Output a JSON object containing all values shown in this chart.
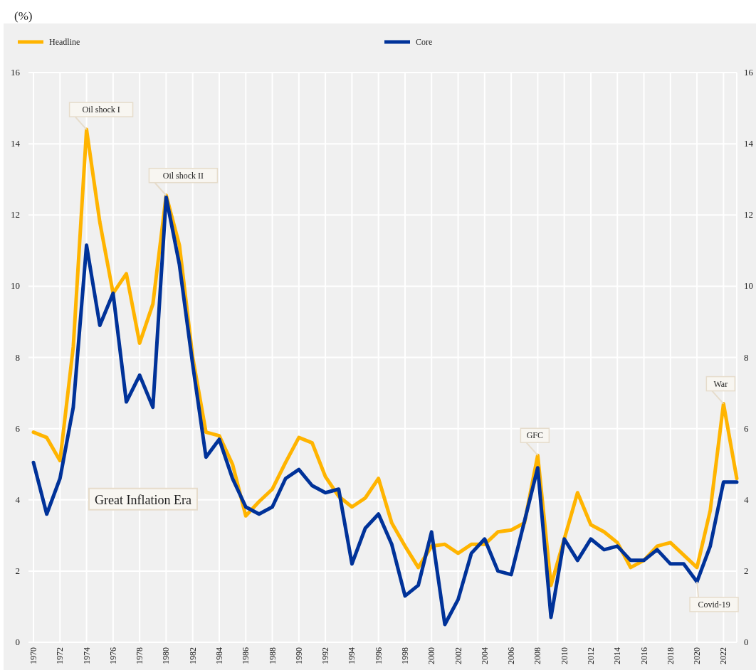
{
  "chart_data": {
    "type": "line",
    "ylabel": "(%)",
    "x": [
      1970,
      1971,
      1972,
      1973,
      1974,
      1975,
      1976,
      1977,
      1978,
      1979,
      1980,
      1981,
      1982,
      1983,
      1984,
      1985,
      1986,
      1987,
      1988,
      1989,
      1990,
      1991,
      1992,
      1993,
      1994,
      1995,
      1996,
      1997,
      1998,
      1999,
      2000,
      2001,
      2002,
      2003,
      2004,
      2005,
      2006,
      2007,
      2008,
      2009,
      2010,
      2011,
      2012,
      2013,
      2014,
      2015,
      2016,
      2017,
      2018,
      2019,
      2020,
      2021,
      2022,
      2023
    ],
    "series": [
      {
        "name": "Headline",
        "color": "#ffb400",
        "values": [
          5.9,
          5.75,
          5.1,
          8.3,
          14.4,
          11.8,
          9.8,
          10.35,
          8.4,
          9.5,
          12.55,
          11.15,
          8.0,
          5.9,
          5.8,
          5.0,
          3.55,
          3.95,
          4.3,
          5.05,
          5.75,
          5.6,
          4.65,
          4.1,
          3.8,
          4.05,
          4.6,
          3.35,
          2.7,
          2.1,
          2.7,
          2.75,
          2.5,
          2.75,
          2.75,
          3.1,
          3.15,
          3.35,
          5.25,
          1.6,
          2.9,
          4.2,
          3.3,
          3.1,
          2.8,
          2.1,
          2.3,
          2.7,
          2.8,
          2.45,
          2.1,
          3.7,
          6.7,
          4.6
        ]
      },
      {
        "name": "Core",
        "color": "#003299",
        "values": [
          5.05,
          3.6,
          4.6,
          6.6,
          11.15,
          8.9,
          9.8,
          6.75,
          7.5,
          6.6,
          12.5,
          10.6,
          7.8,
          5.2,
          5.7,
          4.6,
          3.8,
          3.6,
          3.8,
          4.6,
          4.85,
          4.4,
          4.2,
          4.3,
          2.2,
          3.2,
          3.6,
          2.75,
          1.3,
          1.6,
          3.1,
          0.5,
          1.2,
          2.5,
          2.9,
          2.0,
          1.9,
          3.4,
          4.9,
          0.7,
          2.9,
          2.3,
          2.9,
          2.6,
          2.7,
          2.3,
          2.3,
          2.6,
          2.2,
          2.2,
          1.7,
          2.7,
          4.5,
          4.5
        ]
      }
    ],
    "xlim": [
      1970,
      2023
    ],
    "xticks": [
      1970,
      1972,
      1974,
      1976,
      1978,
      1980,
      1982,
      1984,
      1986,
      1988,
      1990,
      1992,
      1994,
      1996,
      1998,
      2000,
      2002,
      2004,
      2006,
      2008,
      2010,
      2012,
      2014,
      2016,
      2018,
      2020,
      2022
    ],
    "ylim": [
      0,
      16
    ],
    "yticks": [
      0,
      2,
      4,
      6,
      8,
      10,
      12,
      14,
      16
    ],
    "y2lim": [
      0,
      16
    ],
    "y2ticks": [
      0,
      2,
      4,
      6,
      8,
      10,
      12,
      14,
      16
    ],
    "grid": true,
    "legend": "top",
    "marker": "none",
    "line_style": "solid",
    "annotations": [
      {
        "text": "Oil shock I",
        "x": 1974,
        "y": 14.4
      },
      {
        "text": "Oil shock II",
        "x": 1980,
        "y": 12.55
      },
      {
        "text": "GFC",
        "x": 2008,
        "y": 5.25
      },
      {
        "text": "War",
        "x": 2022,
        "y": 6.7
      },
      {
        "text": "Covid-19",
        "x": 2020,
        "y": 1.7
      },
      "Great Inflation Era"
    ]
  }
}
